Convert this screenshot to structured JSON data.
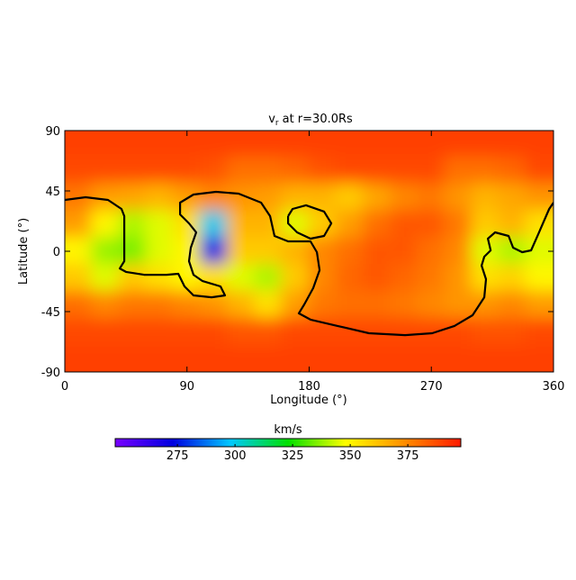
{
  "chart_data": {
    "type": "heatmap",
    "title": "v",
    "title_subscript": "r",
    "title_rest": "at r=30.0Rs",
    "x_label": "Longitude (°)",
    "y_label": "Latitude (°)",
    "xlim": [
      0,
      360
    ],
    "xticks": [
      0,
      90,
      180,
      270,
      360
    ],
    "ylim": [
      -90,
      90
    ],
    "yticks": [
      -90,
      -45,
      0,
      45,
      90
    ],
    "x": [
      10,
      30,
      50,
      70,
      90,
      110,
      130,
      150,
      170,
      190,
      210,
      230,
      250,
      270,
      290,
      310,
      330,
      350
    ],
    "y": [
      80,
      60,
      40,
      20,
      0,
      -20,
      -40,
      -60,
      -80
    ],
    "z": [
      [
        390,
        390,
        390,
        390,
        390,
        390,
        390,
        390,
        390,
        390,
        390,
        390,
        390,
        390,
        390,
        390,
        390,
        390
      ],
      [
        388,
        388,
        388,
        388,
        388,
        386,
        380,
        380,
        382,
        386,
        388,
        388,
        388,
        388,
        380,
        380,
        382,
        388
      ],
      [
        378,
        370,
        368,
        365,
        370,
        375,
        372,
        370,
        365,
        365,
        360,
        368,
        375,
        378,
        372,
        365,
        368,
        372
      ],
      [
        370,
        350,
        340,
        345,
        355,
        300,
        365,
        365,
        345,
        360,
        370,
        380,
        385,
        385,
        378,
        360,
        365,
        355
      ],
      [
        350,
        338,
        335,
        345,
        350,
        270,
        360,
        360,
        365,
        375,
        380,
        385,
        385,
        380,
        375,
        345,
        340,
        345
      ],
      [
        360,
        345,
        360,
        355,
        350,
        355,
        345,
        340,
        360,
        375,
        382,
        385,
        382,
        378,
        372,
        355,
        358,
        350
      ],
      [
        380,
        375,
        378,
        378,
        375,
        372,
        365,
        355,
        370,
        378,
        380,
        380,
        378,
        375,
        372,
        372,
        375,
        370
      ],
      [
        388,
        388,
        388,
        388,
        388,
        388,
        385,
        385,
        388,
        388,
        388,
        388,
        388,
        388,
        388,
        386,
        386,
        388
      ],
      [
        390,
        390,
        390,
        390,
        390,
        390,
        390,
        390,
        390,
        390,
        390,
        390,
        390,
        390,
        390,
        390,
        390,
        390
      ]
    ],
    "contour": {
      "color": "#000000",
      "x": [
        0,
        15.3,
        31.8,
        41.8,
        43.8,
        43.8,
        40.5,
        45.1,
        58.4,
        74.9,
        83.6,
        88.2,
        94.8,
        108.1,
        118.0,
        114.7,
        101.5,
        94.8,
        91.5,
        92.8,
        96.8,
        91.5,
        84.9,
        84.9,
        94.8,
        111.4,
        128.0,
        144.6,
        151.2,
        154.5,
        164.5,
        181.0,
        185.7,
        187.7,
        183.0,
        176.4,
        172.4,
        181.0,
        200.9,
        224.1,
        250.7,
        270.6,
        287.1,
        300.4,
        309.0,
        310.3,
        307.0,
        309.0,
        313.7,
        311.7,
        317.0,
        326.9,
        330.2,
        336.9,
        343.5,
        348.8,
        356.8,
        360,
        null,
        164.5,
        167.8,
        177.7,
        191.0,
        196.3,
        191.0,
        181.0,
        171.1,
        164.5,
        164.5
      ],
      "y": [
        38.3,
        40.3,
        38.3,
        31.6,
        26.2,
        -7.4,
        -12.8,
        -15.4,
        -17.5,
        -17.5,
        -16.8,
        -26.2,
        -32.9,
        -34.3,
        -32.9,
        -26.2,
        -22.2,
        -17.5,
        -7.4,
        2.7,
        14.1,
        20.8,
        27.5,
        36.3,
        42.3,
        44.3,
        43.0,
        36.3,
        26.2,
        11.4,
        7.4,
        7.4,
        -0.7,
        -14.1,
        -27.5,
        -39.6,
        -46.3,
        -51.0,
        -55.7,
        -61.1,
        -62.5,
        -61.1,
        -55.7,
        -47.7,
        -34.3,
        -20.8,
        -10.7,
        -4.0,
        0.7,
        9.4,
        14.1,
        11.4,
        2.7,
        -0.7,
        0.7,
        12.8,
        31.6,
        36.3,
        null,
        26.2,
        31.6,
        34.3,
        29.6,
        20.8,
        11.4,
        9.4,
        14.1,
        20.8,
        26.2
      ]
    },
    "colorbar_label": "km/s",
    "clim": [
      248,
      398
    ],
    "cticks": [
      275,
      300,
      325,
      350,
      375
    ],
    "colormap": [
      "#7800ff",
      "#0000e0",
      "#00c8ff",
      "#00e000",
      "#ffff00",
      "#ff9000",
      "#ff1a00"
    ]
  }
}
